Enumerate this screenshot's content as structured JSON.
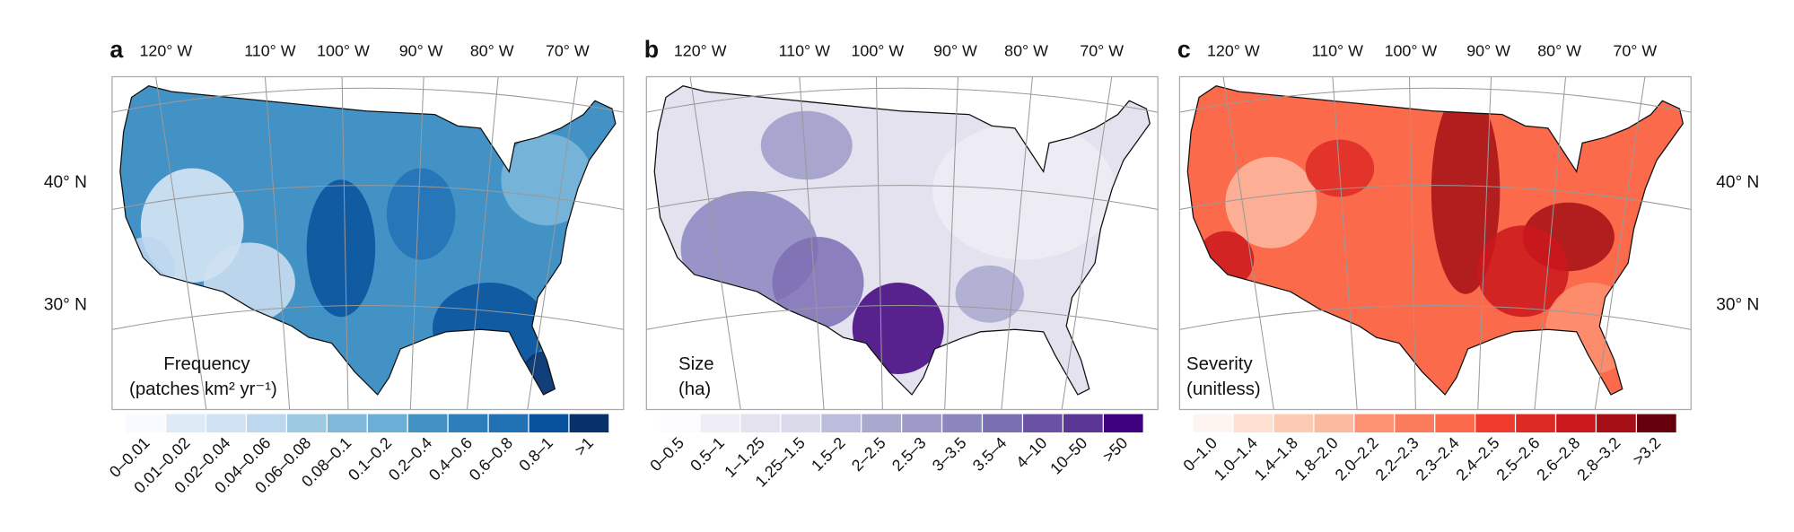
{
  "panels": [
    {
      "letter": "a",
      "lon_labels": [
        "120° W",
        "110° W",
        "100° W",
        "90° W",
        "80° W",
        "70° W"
      ],
      "lat_labels": [
        "40° N",
        "30° N"
      ],
      "legend_title": [
        "Frequency",
        "(patches km² yr⁻¹)"
      ],
      "legend": [
        {
          "label": "0–0.01",
          "color": "#f7fbff"
        },
        {
          "label": "0.01–0.02",
          "color": "#deebf7"
        },
        {
          "label": "0.02–0.04",
          "color": "#cfe1f2"
        },
        {
          "label": "0.04–0.06",
          "color": "#bdd7ee"
        },
        {
          "label": "0.06–0.08",
          "color": "#9ecae1"
        },
        {
          "label": "0.08–0.1",
          "color": "#7fb8da"
        },
        {
          "label": "0.1–0.2",
          "color": "#6baed6"
        },
        {
          "label": "0.2–0.4",
          "color": "#4292c6"
        },
        {
          "label": "0.4–0.6",
          "color": "#2f7ebc"
        },
        {
          "label": "0.6–0.8",
          "color": "#2171b5"
        },
        {
          "label": "0.8–1",
          "color": "#08519c"
        },
        {
          "label": ">1",
          "color": "#08306b"
        }
      ]
    },
    {
      "letter": "b",
      "lon_labels": [
        "120° W",
        "110° W",
        "100° W",
        "90° W",
        "80° W",
        "70° W"
      ],
      "legend_title": [
        "Size",
        "(ha)"
      ],
      "legend": [
        {
          "label": "0–0.5",
          "color": "#fcfbfd"
        },
        {
          "label": "0.5–1",
          "color": "#efedf5"
        },
        {
          "label": "1–1.25",
          "color": "#e4e2ef"
        },
        {
          "label": "1.25–1.5",
          "color": "#dadaeb"
        },
        {
          "label": "1.5–2",
          "color": "#bcbddc"
        },
        {
          "label": "2–2.5",
          "color": "#a9a8cf"
        },
        {
          "label": "2.5–3",
          "color": "#9e9ac8"
        },
        {
          "label": "3–3.5",
          "color": "#8c86bf"
        },
        {
          "label": "3.5–4",
          "color": "#7b6fb4"
        },
        {
          "label": "4–10",
          "color": "#6a51a3"
        },
        {
          "label": "10–50",
          "color": "#5a3596"
        },
        {
          "label": ">50",
          "color": "#3f007d"
        }
      ]
    },
    {
      "letter": "c",
      "lon_labels": [
        "120° W",
        "110° W",
        "100° W",
        "90° W",
        "80° W",
        "70° W"
      ],
      "lat_labels": [
        "40° N",
        "30° N"
      ],
      "legend_title": [
        "Severity",
        "(unitless)"
      ],
      "legend": [
        {
          "label": "0–1.0",
          "color": "#fff5f0"
        },
        {
          "label": "1.0–1.4",
          "color": "#fee0d2"
        },
        {
          "label": "1.4–1.8",
          "color": "#fdcab4"
        },
        {
          "label": "1.8–2.0",
          "color": "#fcbba1"
        },
        {
          "label": "2.0–2.2",
          "color": "#fc9272"
        },
        {
          "label": "2.2–2.3",
          "color": "#fb7c5c"
        },
        {
          "label": "2.3–2.4",
          "color": "#fb6a4a"
        },
        {
          "label": "2.4–2.5",
          "color": "#ef3b2c"
        },
        {
          "label": "2.5–2.6",
          "color": "#dd2a25"
        },
        {
          "label": "2.6–2.8",
          "color": "#cb181d"
        },
        {
          "label": "2.8–3.2",
          "color": "#a50f15"
        },
        {
          "label": ">3.2",
          "color": "#67000d"
        }
      ]
    }
  ]
}
